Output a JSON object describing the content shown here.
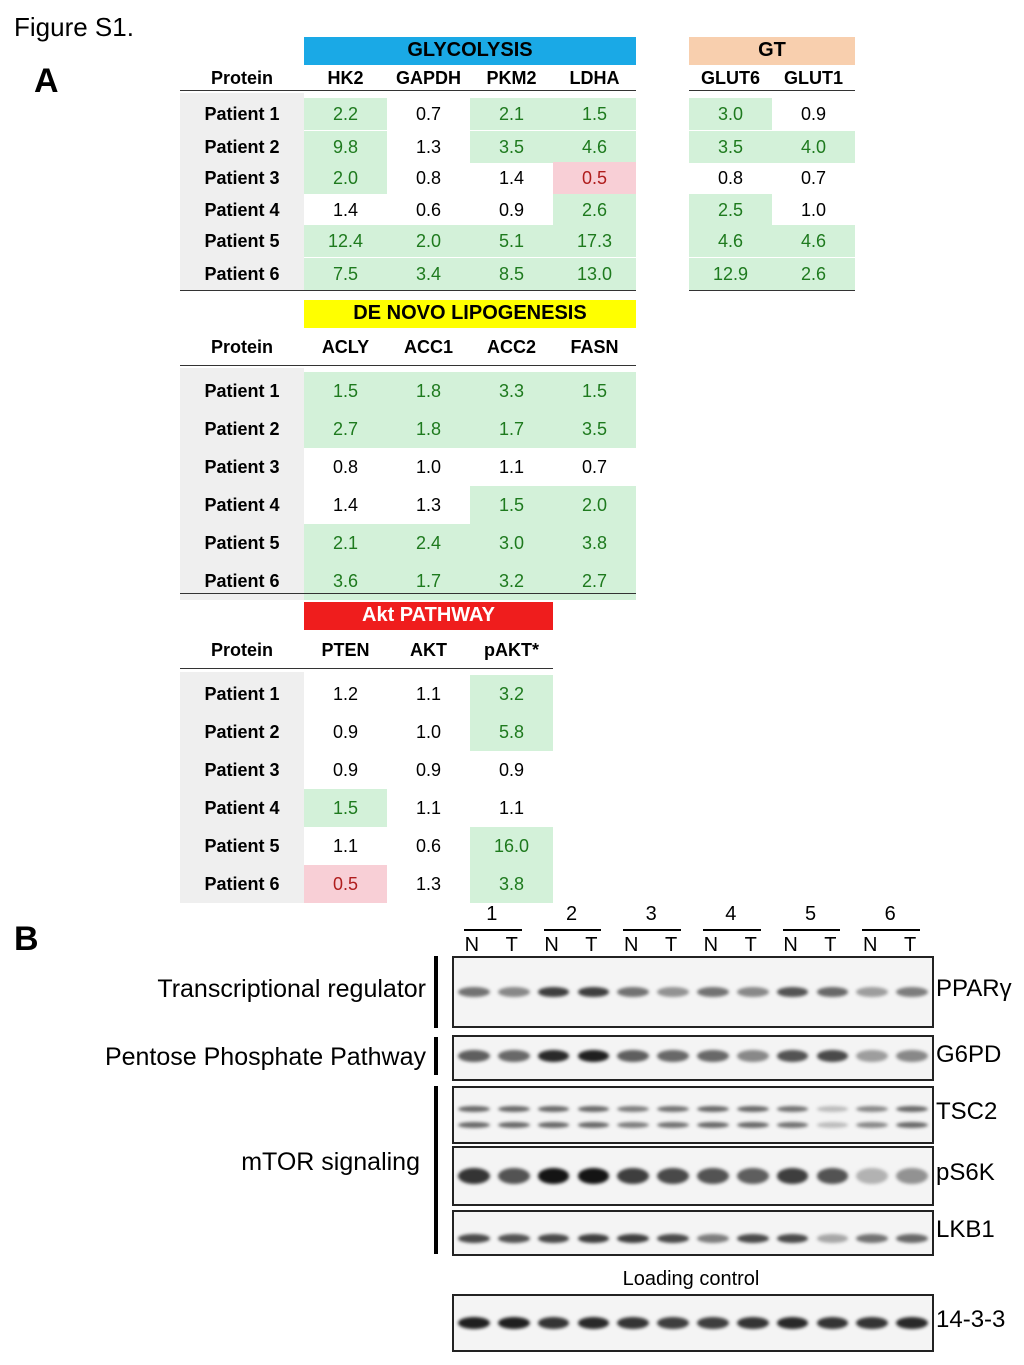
{
  "figure_title": "Figure S1.",
  "panel_a_label": "A",
  "panel_b_label": "B",
  "row_header": "Protein",
  "patients": [
    "Patient 1",
    "Patient 2",
    "Patient 3",
    "Patient 4",
    "Patient 5",
    "Patient 6"
  ],
  "colors": {
    "glycolysis": "#1aa9e6",
    "gt": "#f8cfae",
    "lipogenesis": "#ffff00",
    "akt": "#ef1d1d",
    "up_bg": "#d3f1d9",
    "up_text": "#1e7a1e",
    "down_bg": "#f8cfd6",
    "down_text": "#b01d1d"
  },
  "glycolysis": {
    "title": "GLYCOLYSIS",
    "proteins": [
      "HK2",
      "GAPDH",
      "PKM2",
      "LDHA"
    ],
    "values": [
      [
        "2.2",
        "0.7",
        "2.1",
        "1.5"
      ],
      [
        "9.8",
        "1.3",
        "3.5",
        "4.6"
      ],
      [
        "2.0",
        "0.8",
        "1.4",
        "0.5"
      ],
      [
        "1.4",
        "0.6",
        "0.9",
        "2.6"
      ],
      [
        "12.4",
        "2.0",
        "5.1",
        "17.3"
      ],
      [
        "7.5",
        "3.4",
        "8.5",
        "13.0"
      ]
    ],
    "status": [
      [
        "up",
        "none",
        "up",
        "up"
      ],
      [
        "up",
        "none",
        "up",
        "up"
      ],
      [
        "up",
        "none",
        "none",
        "down"
      ],
      [
        "none",
        "none",
        "none",
        "up"
      ],
      [
        "up",
        "up",
        "up",
        "up"
      ],
      [
        "up",
        "up",
        "up",
        "up"
      ]
    ]
  },
  "gt": {
    "title": "GT",
    "proteins": [
      "GLUT6",
      "GLUT1"
    ],
    "values": [
      [
        "3.0",
        "0.9"
      ],
      [
        "3.5",
        "4.0"
      ],
      [
        "0.8",
        "0.7"
      ],
      [
        "2.5",
        "1.0"
      ],
      [
        "4.6",
        "4.6"
      ],
      [
        "12.9",
        "2.6"
      ]
    ],
    "status": [
      [
        "up",
        "none"
      ],
      [
        "up",
        "up"
      ],
      [
        "none",
        "none"
      ],
      [
        "up",
        "none"
      ],
      [
        "up",
        "up"
      ],
      [
        "up",
        "up"
      ]
    ]
  },
  "lipogenesis": {
    "title": "DE NOVO LIPOGENESIS",
    "proteins": [
      "ACLY",
      "ACC1",
      "ACC2",
      "FASN"
    ],
    "values": [
      [
        "1.5",
        "1.8",
        "3.3",
        "1.5"
      ],
      [
        "2.7",
        "1.8",
        "1.7",
        "3.5"
      ],
      [
        "0.8",
        "1.0",
        "1.1",
        "0.7"
      ],
      [
        "1.4",
        "1.3",
        "1.5",
        "2.0"
      ],
      [
        "2.1",
        "2.4",
        "3.0",
        "3.8"
      ],
      [
        "3.6",
        "1.7",
        "3.2",
        "2.7"
      ]
    ],
    "status": [
      [
        "up",
        "up",
        "up",
        "up"
      ],
      [
        "up",
        "up",
        "up",
        "up"
      ],
      [
        "none",
        "none",
        "none",
        "none"
      ],
      [
        "none",
        "none",
        "up",
        "up"
      ],
      [
        "up",
        "up",
        "up",
        "up"
      ],
      [
        "up",
        "up",
        "up",
        "up"
      ]
    ]
  },
  "akt": {
    "title": "Akt PATHWAY",
    "proteins": [
      "PTEN",
      "AKT",
      "pAKT*"
    ],
    "values": [
      [
        "1.2",
        "1.1",
        "3.2"
      ],
      [
        "0.9",
        "1.0",
        "5.8"
      ],
      [
        "0.9",
        "0.9",
        "0.9"
      ],
      [
        "1.5",
        "1.1",
        "1.1"
      ],
      [
        "1.1",
        "0.6",
        "16.0"
      ],
      [
        "0.5",
        "1.3",
        "3.8"
      ]
    ],
    "status": [
      [
        "none",
        "none",
        "up"
      ],
      [
        "none",
        "none",
        "up"
      ],
      [
        "none",
        "none",
        "none"
      ],
      [
        "up",
        "none",
        "none"
      ],
      [
        "none",
        "none",
        "up"
      ],
      [
        "down",
        "none",
        "up"
      ]
    ]
  },
  "blots": {
    "lane_groups": [
      "1",
      "2",
      "3",
      "4",
      "5",
      "6"
    ],
    "lane_labels": [
      "N",
      "T",
      "N",
      "T",
      "N",
      "T",
      "N",
      "T",
      "N",
      "T",
      "N",
      "T"
    ],
    "categories": [
      {
        "label": "Transcriptional regulator"
      },
      {
        "label": "Pentose Phosphate Pathway"
      },
      {
        "label": "mTOR signaling"
      }
    ],
    "targets": [
      "PPARγ",
      "G6PD",
      "TSC2",
      "pS6K",
      "LKB1",
      "14-3-3"
    ],
    "loading_control": "Loading control",
    "band_intensity_note": "relative darkness per lane",
    "intensities": {
      "PPARγ": [
        0.55,
        0.45,
        0.8,
        0.8,
        0.55,
        0.4,
        0.55,
        0.45,
        0.7,
        0.6,
        0.35,
        0.5
      ],
      "G6PD": [
        0.65,
        0.6,
        0.9,
        0.95,
        0.65,
        0.6,
        0.6,
        0.45,
        0.7,
        0.75,
        0.35,
        0.45
      ],
      "TSC2": [
        0.6,
        0.6,
        0.6,
        0.6,
        0.5,
        0.55,
        0.6,
        0.6,
        0.55,
        0.2,
        0.45,
        0.6
      ],
      "pS6K": [
        0.85,
        0.7,
        1.0,
        1.0,
        0.8,
        0.75,
        0.7,
        0.65,
        0.8,
        0.7,
        0.25,
        0.4
      ],
      "LKB1": [
        0.75,
        0.7,
        0.75,
        0.8,
        0.8,
        0.75,
        0.5,
        0.75,
        0.75,
        0.3,
        0.55,
        0.6
      ],
      "14-3-3": [
        0.95,
        0.95,
        0.85,
        0.9,
        0.85,
        0.8,
        0.8,
        0.85,
        0.9,
        0.85,
        0.85,
        0.9
      ]
    }
  }
}
